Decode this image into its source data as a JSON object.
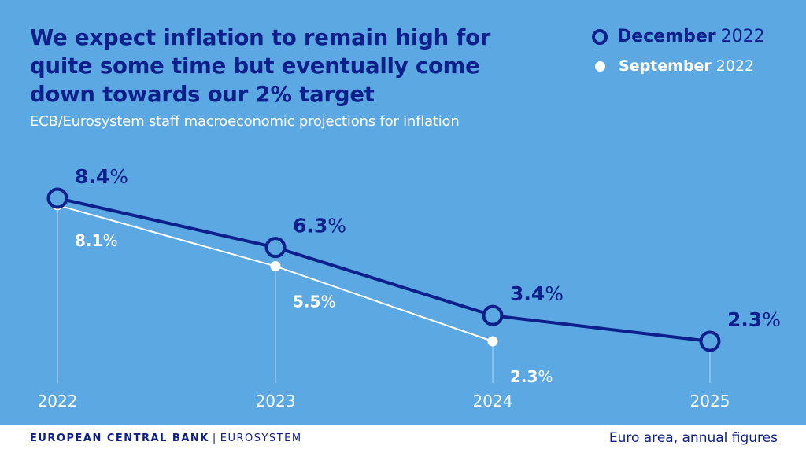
{
  "title": "We expect inflation to remain high for\nquite some time but eventually come\ndown towards our 2% target",
  "subtitle": "ECB/Eurosystem staff macroeconomic projections for inflation",
  "legend": {
    "december_month": "December",
    "december_year": "2022",
    "september_month": "September",
    "september_year": "2022"
  },
  "colors": {
    "background": "#5ca8e2",
    "december": "#0d1f8a",
    "september": "#ffffff"
  },
  "chart_data": {
    "type": "line",
    "categories": [
      "2022",
      "2023",
      "2024",
      "2025"
    ],
    "series": [
      {
        "name": "December 2022",
        "values": [
          8.4,
          6.3,
          3.4,
          2.3
        ],
        "labels": [
          "8.4%",
          "6.3%",
          "3.4%",
          "2.3%"
        ],
        "marker": "ring"
      },
      {
        "name": "September 2022",
        "values": [
          8.1,
          5.5,
          2.3,
          null
        ],
        "labels": [
          "8.1%",
          "5.5%",
          "2.3%",
          ""
        ],
        "marker": "dot"
      }
    ],
    "unit": "%",
    "ylim": [
      0,
      10
    ],
    "grid": false,
    "legend_position": "top-right"
  },
  "footer": {
    "bank": "EUROPEAN CENTRAL BANK",
    "separator": "|",
    "system": "EUROSYSTEM",
    "note": "Euro area, annual figures"
  }
}
